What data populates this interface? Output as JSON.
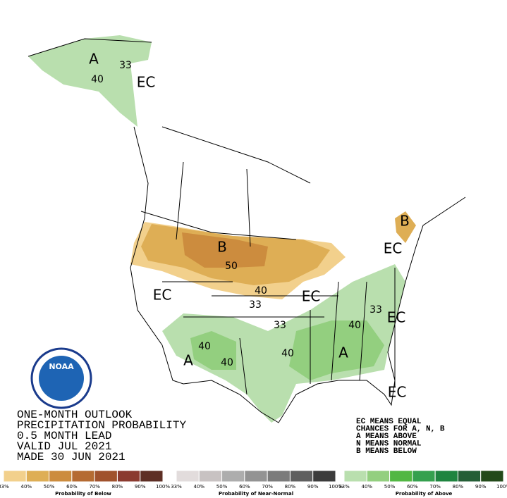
{
  "title_block": {
    "lines": [
      "ONE-MONTH OUTLOOK",
      "PRECIPITATION PROBABILITY",
      "0.5 MONTH LEAD",
      "VALID JUL 2021",
      "MADE 30 JUN 2021"
    ]
  },
  "key": {
    "lines": [
      "EC MEANS EQUAL",
      "CHANCES FOR A, N, B",
      "A MEANS ABOVE",
      "N MEANS NORMAL",
      "B MEANS BELOW"
    ]
  },
  "logo": {
    "text": "NOAA"
  },
  "map_labels": [
    "A",
    "33",
    "40",
    "EC",
    "B",
    "50",
    "40",
    "33",
    "EC",
    "EC",
    "33",
    "EC",
    "B",
    "33",
    "EC",
    "40",
    "40",
    "40",
    "40",
    "A",
    "A",
    "EC"
  ],
  "legends": [
    {
      "caption": "Probability of Below",
      "colors": [
        "#f2d08c",
        "#deae55",
        "#cc8c3e",
        "#b56b32",
        "#a0522d",
        "#8b3a2f",
        "#5e2f25"
      ],
      "ticks": [
        "33%",
        "40%",
        "50%",
        "60%",
        "70%",
        "80%",
        "90%",
        "100%"
      ]
    },
    {
      "caption": "Probability of Near-Normal",
      "colors": [
        "#e2dcdc",
        "#c8c2c2",
        "#adadad",
        "#939393",
        "#7b7b7b",
        "#5f5f5f",
        "#3c3c3c"
      ],
      "ticks": [
        "33%",
        "40%",
        "50%",
        "60%",
        "70%",
        "80%",
        "90%",
        "100%"
      ]
    },
    {
      "caption": "Probability of Above",
      "colors": [
        "#b9dfae",
        "#93cf7f",
        "#52b743",
        "#35a04e",
        "#1f843f",
        "#245e36",
        "#234a1a"
      ],
      "ticks": [
        "33%",
        "40%",
        "50%",
        "60%",
        "70%",
        "80%",
        "90%",
        "100%"
      ]
    }
  ]
}
